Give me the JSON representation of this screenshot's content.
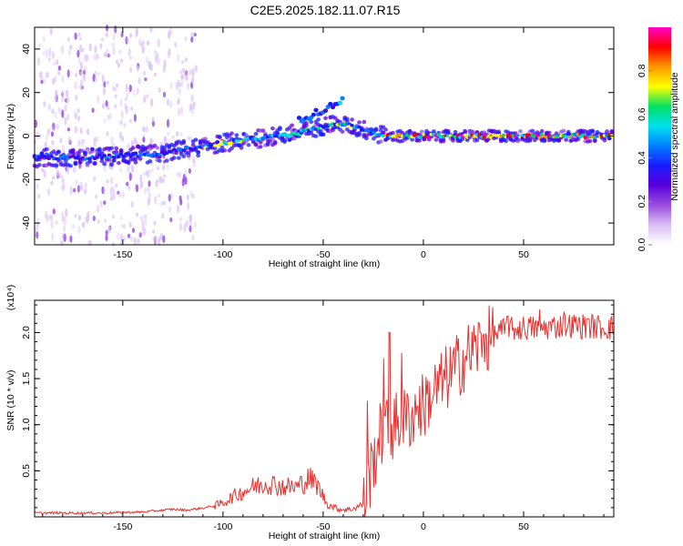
{
  "figure_title": "C2E5.2025.182.11.07.R15",
  "colors": {
    "snr_line": "#e8302e",
    "colormap": [
      "#ffffff",
      "#d9bff5",
      "#9b4de0",
      "#5a00d9",
      "#1a1aff",
      "#0080ff",
      "#00e0f0",
      "#00e060",
      "#ffff00",
      "#ff9900",
      "#ff0000",
      "#ff00c8"
    ]
  },
  "chart_data": [
    {
      "type": "heatmap",
      "id": "spectrogram",
      "xlabel": "Height of straight line (km)",
      "ylabel": "Frequency (Hz)",
      "xlim": [
        -194,
        95
      ],
      "ylim": [
        -50,
        50
      ],
      "x_ticks": [
        -150,
        -100,
        -50,
        0,
        50
      ],
      "y_ticks": [
        -40,
        -20,
        0,
        20,
        40
      ],
      "colorbar": {
        "label": "Normalized spectral amplitude",
        "range": [
          0.0,
          1.0
        ],
        "ticks": [
          "0.0",
          "0.2",
          "0.4",
          "0.6",
          "0.8"
        ]
      },
      "ridge_main": [
        [
          -194,
          -10
        ],
        [
          -170,
          -10
        ],
        [
          -150,
          -9
        ],
        [
          -130,
          -8
        ],
        [
          -120,
          -6
        ],
        [
          -110,
          -5
        ],
        [
          -100,
          -3
        ],
        [
          -80,
          -1
        ],
        [
          -60,
          2
        ],
        [
          -45,
          6
        ],
        [
          -38,
          5
        ],
        [
          -30,
          3
        ],
        [
          -24,
          1
        ],
        [
          -15,
          0
        ],
        [
          0,
          0
        ],
        [
          20,
          0
        ],
        [
          50,
          0
        ],
        [
          95,
          0
        ]
      ],
      "ridge_upper": [
        [
          -62,
          8
        ],
        [
          -55,
          10
        ],
        [
          -47,
          13
        ],
        [
          -42,
          16
        ],
        [
          -40,
          19
        ]
      ],
      "noise_band_x": [
        -194,
        -113
      ]
    },
    {
      "type": "line",
      "id": "snr",
      "xlabel": "Height of straight line (km)",
      "ylabel": "SNR (10 * v/v)",
      "y_multiplier": "(x10⁴)",
      "xlim": [
        -194,
        95
      ],
      "ylim": [
        0,
        2.35
      ],
      "x_ticks": [
        -150,
        -100,
        -50,
        0,
        50
      ],
      "y_ticks": [
        "0.5",
        "1.0",
        "1.5",
        "2.0"
      ],
      "envelope": [
        [
          -194,
          0.02
        ],
        [
          -160,
          0.02
        ],
        [
          -140,
          0.03
        ],
        [
          -125,
          0.06
        ],
        [
          -118,
          0.05
        ],
        [
          -108,
          0.08
        ],
        [
          -100,
          0.13
        ],
        [
          -95,
          0.19
        ],
        [
          -85,
          0.28
        ],
        [
          -78,
          0.32
        ],
        [
          -70,
          0.28
        ],
        [
          -63,
          0.28
        ],
        [
          -57,
          0.36
        ],
        [
          -53,
          0.3
        ],
        [
          -48,
          0.12
        ],
        [
          -42,
          0.07
        ],
        [
          -36,
          0.07
        ],
        [
          -30,
          0.12
        ],
        [
          -26,
          0.55
        ],
        [
          -22,
          0.9
        ],
        [
          -18,
          0.98
        ],
        [
          -12,
          1.05
        ],
        [
          -5,
          1.15
        ],
        [
          0,
          1.25
        ],
        [
          5,
          1.38
        ],
        [
          10,
          1.5
        ],
        [
          15,
          1.62
        ],
        [
          20,
          1.75
        ],
        [
          25,
          1.85
        ],
        [
          30,
          1.93
        ],
        [
          35,
          1.98
        ],
        [
          40,
          2.02
        ],
        [
          50,
          2.05
        ],
        [
          60,
          2.05
        ],
        [
          70,
          2.08
        ],
        [
          80,
          2.07
        ],
        [
          95,
          2.05
        ]
      ],
      "peaks": [
        [
          -17,
          2.0
        ],
        [
          -11,
          1.78
        ],
        [
          -28,
          1.26
        ],
        [
          -20,
          1.72
        ],
        [
          -3,
          1.2
        ],
        [
          30,
          1.98
        ],
        [
          42,
          2.18
        ],
        [
          58,
          2.25
        ],
        [
          70,
          2.22
        ],
        [
          82,
          2.15
        ]
      ]
    }
  ]
}
